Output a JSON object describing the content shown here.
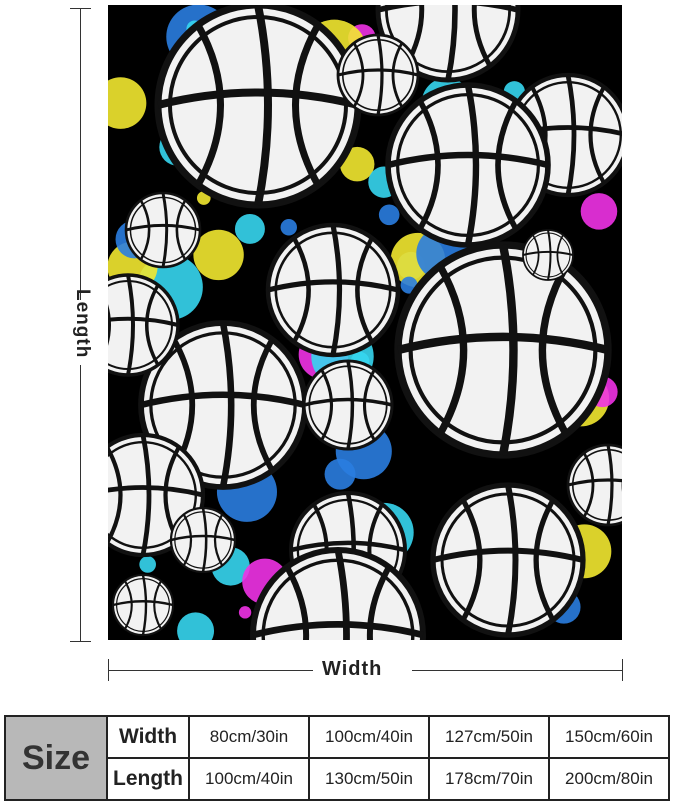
{
  "dimension_labels": {
    "length": "Length",
    "width": "Width"
  },
  "blanket": {
    "pattern": "basketballs on paint splatter",
    "colors": [
      "#000000",
      "#36d6ef",
      "#f032e6",
      "#f2e830",
      "#2a7de0",
      "#ffffff"
    ]
  },
  "size_table": {
    "title": "Size",
    "rows": [
      {
        "label": "Width",
        "values": [
          "80cm/30in",
          "100cm/40in",
          "127cm/50in",
          "150cm/60in"
        ]
      },
      {
        "label": "Length",
        "values": [
          "100cm/40in",
          "130cm/50in",
          "178cm/70in",
          "200cm/80in"
        ]
      }
    ]
  }
}
